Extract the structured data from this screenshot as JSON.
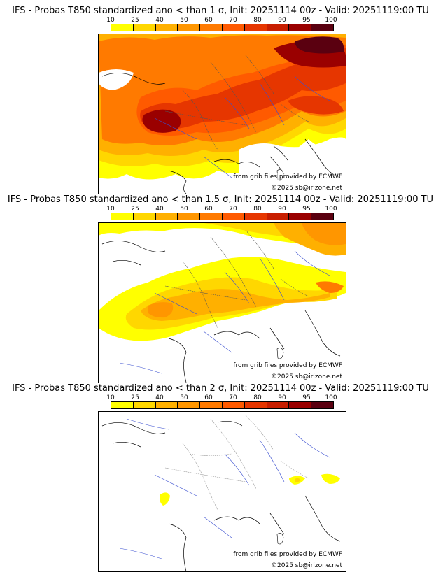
{
  "palette": [
    "#ffff00",
    "#ffd700",
    "#ffb000",
    "#ff9600",
    "#ff7a00",
    "#ff5a00",
    "#e63600",
    "#c81e00",
    "#9a0000",
    "#5a0010"
  ],
  "colorbar_ticks": [
    "10",
    "25",
    "40",
    "50",
    "60",
    "70",
    "80",
    "90",
    "95",
    "100"
  ],
  "credit_source": "from grib files provided by ECMWF",
  "credit_copyright": "©2025 sb@irizone.net",
  "panels": [
    {
      "title": "IFS - Probas T850  standardized ano < than 1 σ, Init: 20251114 00z - Valid: 20251119:00 TU",
      "threshold": "1 σ"
    },
    {
      "title": "IFS - Probas T850  standardized ano < than 1.5 σ, Init: 20251114 00z - Valid: 20251119:00 TU",
      "threshold": "1.5 σ"
    },
    {
      "title": "IFS - Probas T850  standardized ano < than 2 σ, Init: 20251114 00z - Valid: 20251119:00 TU",
      "threshold": "2 σ"
    }
  ]
}
